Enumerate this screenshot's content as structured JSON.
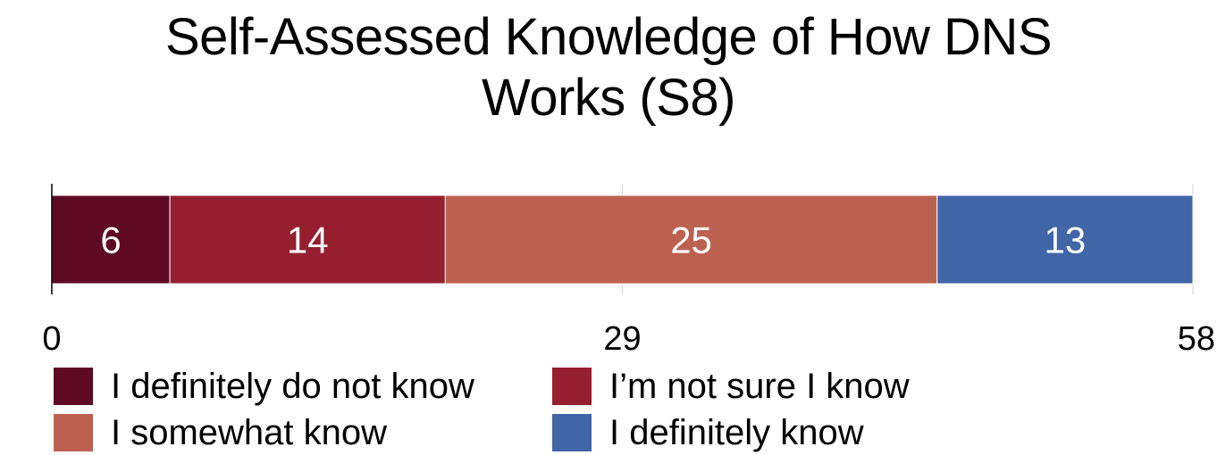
{
  "chart_data": {
    "type": "bar",
    "orientation": "horizontal-stacked",
    "title_lines": [
      "Self-Assessed Knowledge of How DNS",
      "Works (S8)"
    ],
    "xlabel": "",
    "ylabel": "",
    "xlim": [
      0,
      58
    ],
    "x_ticks": [
      "0",
      "29",
      "58"
    ],
    "grid": true,
    "legend_position": "bottom",
    "series": [
      {
        "name": "I definitely do not know",
        "value": 6,
        "label": "6",
        "color": "#5e0a24"
      },
      {
        "name": "I’m not sure I know",
        "value": 14,
        "label": "14",
        "color": "#951f2f"
      },
      {
        "name": "I somewhat know",
        "value": 25,
        "label": "25",
        "color": "#bc6150"
      },
      {
        "name": "I definitely know",
        "value": 13,
        "label": "13",
        "color": "#4166a8"
      }
    ]
  }
}
